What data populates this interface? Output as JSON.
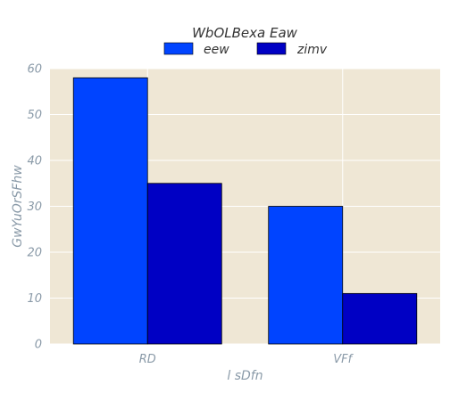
{
  "chart_data": {
    "type": "bar",
    "title": "",
    "xlabel": "l sDfn",
    "ylabel": "GwYuOrSFhw",
    "categories": [
      "RD",
      "VFf"
    ],
    "series": [
      {
        "name": "eew",
        "values": [
          58,
          30
        ],
        "color": "#0044ff"
      },
      {
        "name": "zimv",
        "values": [
          35,
          11
        ],
        "color": "#0000c4"
      }
    ],
    "ylim": [
      0,
      60
    ],
    "yticks": [
      0,
      10,
      20,
      30,
      40,
      50,
      60
    ],
    "grid": true,
    "background": "#efe7d5",
    "legend": {
      "title": "WbOLBexa   Eaw",
      "placement": "top-center"
    }
  }
}
